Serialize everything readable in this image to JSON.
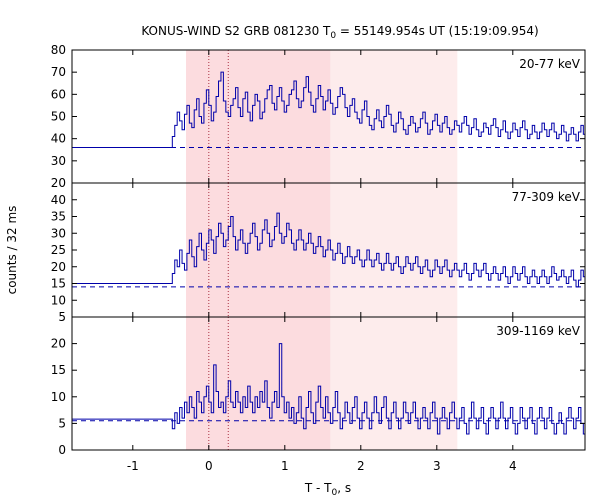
{
  "chart_data": {
    "type": "line",
    "title": {
      "main": "KONUS-WIND S2 GRB 081230 T",
      "sub": "0",
      "rest": " = 55149.954s UT (15:19:09.954)"
    },
    "xlabel": {
      "main": "T - T",
      "sub": "0",
      "rest": ", s"
    },
    "ylabel": "counts / 32 ms",
    "xlim": [
      -1.8,
      4.95
    ],
    "xticks": [
      -1,
      0,
      1,
      2,
      3,
      4
    ],
    "grid": false,
    "bin_width_s": 0.032,
    "shaded_intervals": [
      {
        "x0": -0.3,
        "x1": 1.6,
        "shade": "dark"
      },
      {
        "x0": 1.6,
        "x1": 3.27,
        "shade": "light"
      }
    ],
    "vlines": [
      0,
      0.256
    ],
    "colors": {
      "series": "#0000aa",
      "shade_dark": "#fcdcdf",
      "shade_light": "#fdecec",
      "axis": "#000000"
    },
    "panels": [
      {
        "label": "20-77 keV",
        "ylim": [
          20,
          80
        ],
        "yticks": [
          20,
          30,
          40,
          50,
          60,
          70,
          80
        ],
        "background": 36,
        "pre_level": 36,
        "start_x": -0.48,
        "values": [
          41,
          46,
          52,
          48,
          44,
          51,
          55,
          47,
          45,
          53,
          58,
          50,
          47,
          56,
          62,
          55,
          48,
          52,
          59,
          66,
          70,
          57,
          52,
          50,
          55,
          58,
          63,
          54,
          50,
          58,
          61,
          52,
          48,
          55,
          60,
          57,
          49,
          52,
          58,
          62,
          64,
          56,
          53,
          59,
          63,
          57,
          52,
          55,
          60,
          62,
          66,
          58,
          54,
          57,
          63,
          68,
          61,
          55,
          52,
          58,
          64,
          59,
          53,
          57,
          62,
          56,
          51,
          54,
          59,
          63,
          60,
          54,
          50,
          55,
          58,
          52,
          49,
          47,
          53,
          57,
          50,
          46,
          44,
          49,
          53,
          48,
          45,
          50,
          55,
          51,
          46,
          43,
          47,
          52,
          49,
          44,
          42,
          46,
          50,
          47,
          43,
          45,
          49,
          52,
          47,
          42,
          44,
          48,
          51,
          46,
          43,
          47,
          50,
          45,
          42,
          44,
          48,
          46,
          43,
          47,
          50,
          46,
          42,
          45,
          49,
          44,
          41,
          43,
          47,
          45,
          42,
          46,
          49,
          45,
          41,
          44,
          48,
          43,
          40,
          43,
          47,
          44,
          41,
          45,
          48,
          44,
          40,
          42,
          46,
          43,
          40,
          43,
          47,
          44,
          41,
          44,
          47,
          43,
          40,
          42,
          46,
          43,
          39,
          42,
          45,
          42,
          39,
          43,
          46,
          42,
          39,
          41,
          44,
          41,
          38,
          41,
          45,
          42,
          38,
          40,
          44,
          41,
          38,
          42,
          46,
          42,
          38,
          40,
          44,
          41,
          37,
          40,
          43,
          40,
          37,
          40,
          44,
          41,
          37,
          39,
          43,
          40,
          37,
          41,
          45,
          42,
          38,
          40,
          44,
          41,
          38
        ]
      },
      {
        "label": "77-309 keV",
        "ylim": [
          5,
          45
        ],
        "yticks": [
          5,
          10,
          15,
          20,
          25,
          30,
          35,
          40
        ],
        "background": 14,
        "pre_level": 15,
        "start_x": -0.48,
        "values": [
          18,
          22,
          20,
          25,
          21,
          19,
          24,
          28,
          23,
          20,
          26,
          30,
          25,
          22,
          27,
          31,
          28,
          24,
          29,
          33,
          30,
          26,
          28,
          32,
          35,
          29,
          25,
          28,
          31,
          27,
          24,
          27,
          30,
          33,
          29,
          25,
          27,
          31,
          34,
          30,
          26,
          28,
          32,
          36,
          30,
          27,
          29,
          33,
          31,
          27,
          25,
          28,
          31,
          28,
          25,
          27,
          30,
          27,
          24,
          26,
          29,
          26,
          23,
          25,
          28,
          25,
          22,
          24,
          27,
          24,
          21,
          23,
          26,
          23,
          21,
          23,
          25,
          22,
          20,
          22,
          25,
          22,
          20,
          22,
          24,
          21,
          19,
          21,
          24,
          21,
          19,
          21,
          23,
          20,
          18,
          20,
          23,
          21,
          19,
          21,
          23,
          20,
          18,
          20,
          22,
          19,
          17,
          19,
          22,
          20,
          18,
          20,
          22,
          19,
          17,
          19,
          21,
          19,
          17,
          19,
          21,
          18,
          16,
          18,
          21,
          19,
          17,
          19,
          21,
          18,
          16,
          18,
          20,
          18,
          16,
          18,
          20,
          17,
          15,
          17,
          20,
          18,
          16,
          18,
          20,
          17,
          15,
          17,
          19,
          17,
          15,
          17,
          19,
          17,
          15,
          17,
          20,
          18,
          16,
          17,
          19,
          17,
          15,
          17,
          19,
          16,
          14,
          16,
          19,
          17,
          15,
          17,
          19,
          16,
          14,
          16,
          18,
          16,
          15,
          17,
          19,
          16,
          14,
          16,
          18,
          16,
          14,
          16,
          18,
          17,
          15,
          17,
          19,
          16,
          14,
          16,
          18,
          16,
          14,
          16,
          18,
          16,
          14,
          16,
          18
        ]
      },
      {
        "label": "309-1169 keV",
        "ylim": [
          0,
          25
        ],
        "yticks": [
          0,
          5,
          10,
          15,
          20
        ],
        "background": 5.5,
        "pre_level": 5.8,
        "start_x": -0.48,
        "values": [
          4,
          7,
          5,
          8,
          6,
          9,
          7,
          10,
          8,
          6,
          11,
          9,
          7,
          10,
          12,
          9,
          7,
          16,
          11,
          8,
          9,
          7,
          10,
          13,
          9,
          8,
          11,
          9,
          7,
          10,
          8,
          12,
          9,
          7,
          10,
          8,
          11,
          9,
          13,
          8,
          6,
          9,
          11,
          8,
          20,
          10,
          7,
          9,
          6,
          8,
          5,
          7,
          10,
          6,
          4,
          8,
          11,
          7,
          5,
          9,
          12,
          8,
          6,
          10,
          7,
          5,
          8,
          11,
          7,
          4,
          6,
          9,
          7,
          5,
          8,
          10,
          6,
          4,
          7,
          9,
          6,
          4,
          7,
          10,
          7,
          5,
          8,
          10,
          6,
          4,
          7,
          9,
          6,
          4,
          6,
          9,
          7,
          5,
          7,
          9,
          6,
          4,
          6,
          8,
          6,
          4,
          7,
          9,
          6,
          3,
          6,
          8,
          6,
          4,
          7,
          9,
          6,
          4,
          6,
          8,
          5,
          3,
          6,
          9,
          6,
          4,
          6,
          8,
          5,
          3,
          6,
          8,
          6,
          4,
          6,
          9,
          6,
          4,
          6,
          8,
          5,
          3,
          5,
          8,
          6,
          4,
          6,
          8,
          5,
          3,
          6,
          8,
          6,
          4,
          6,
          8,
          5,
          3,
          5,
          7,
          5,
          3,
          6,
          8,
          6,
          4,
          6,
          8,
          5,
          3,
          5,
          7,
          5,
          3,
          5,
          8,
          6,
          4,
          6,
          8,
          5,
          3,
          5,
          7,
          5,
          3,
          5,
          8,
          6,
          4,
          6,
          8,
          5,
          3,
          5,
          7,
          5,
          3,
          5,
          7,
          5,
          3,
          5,
          8,
          6
        ]
      }
    ]
  }
}
